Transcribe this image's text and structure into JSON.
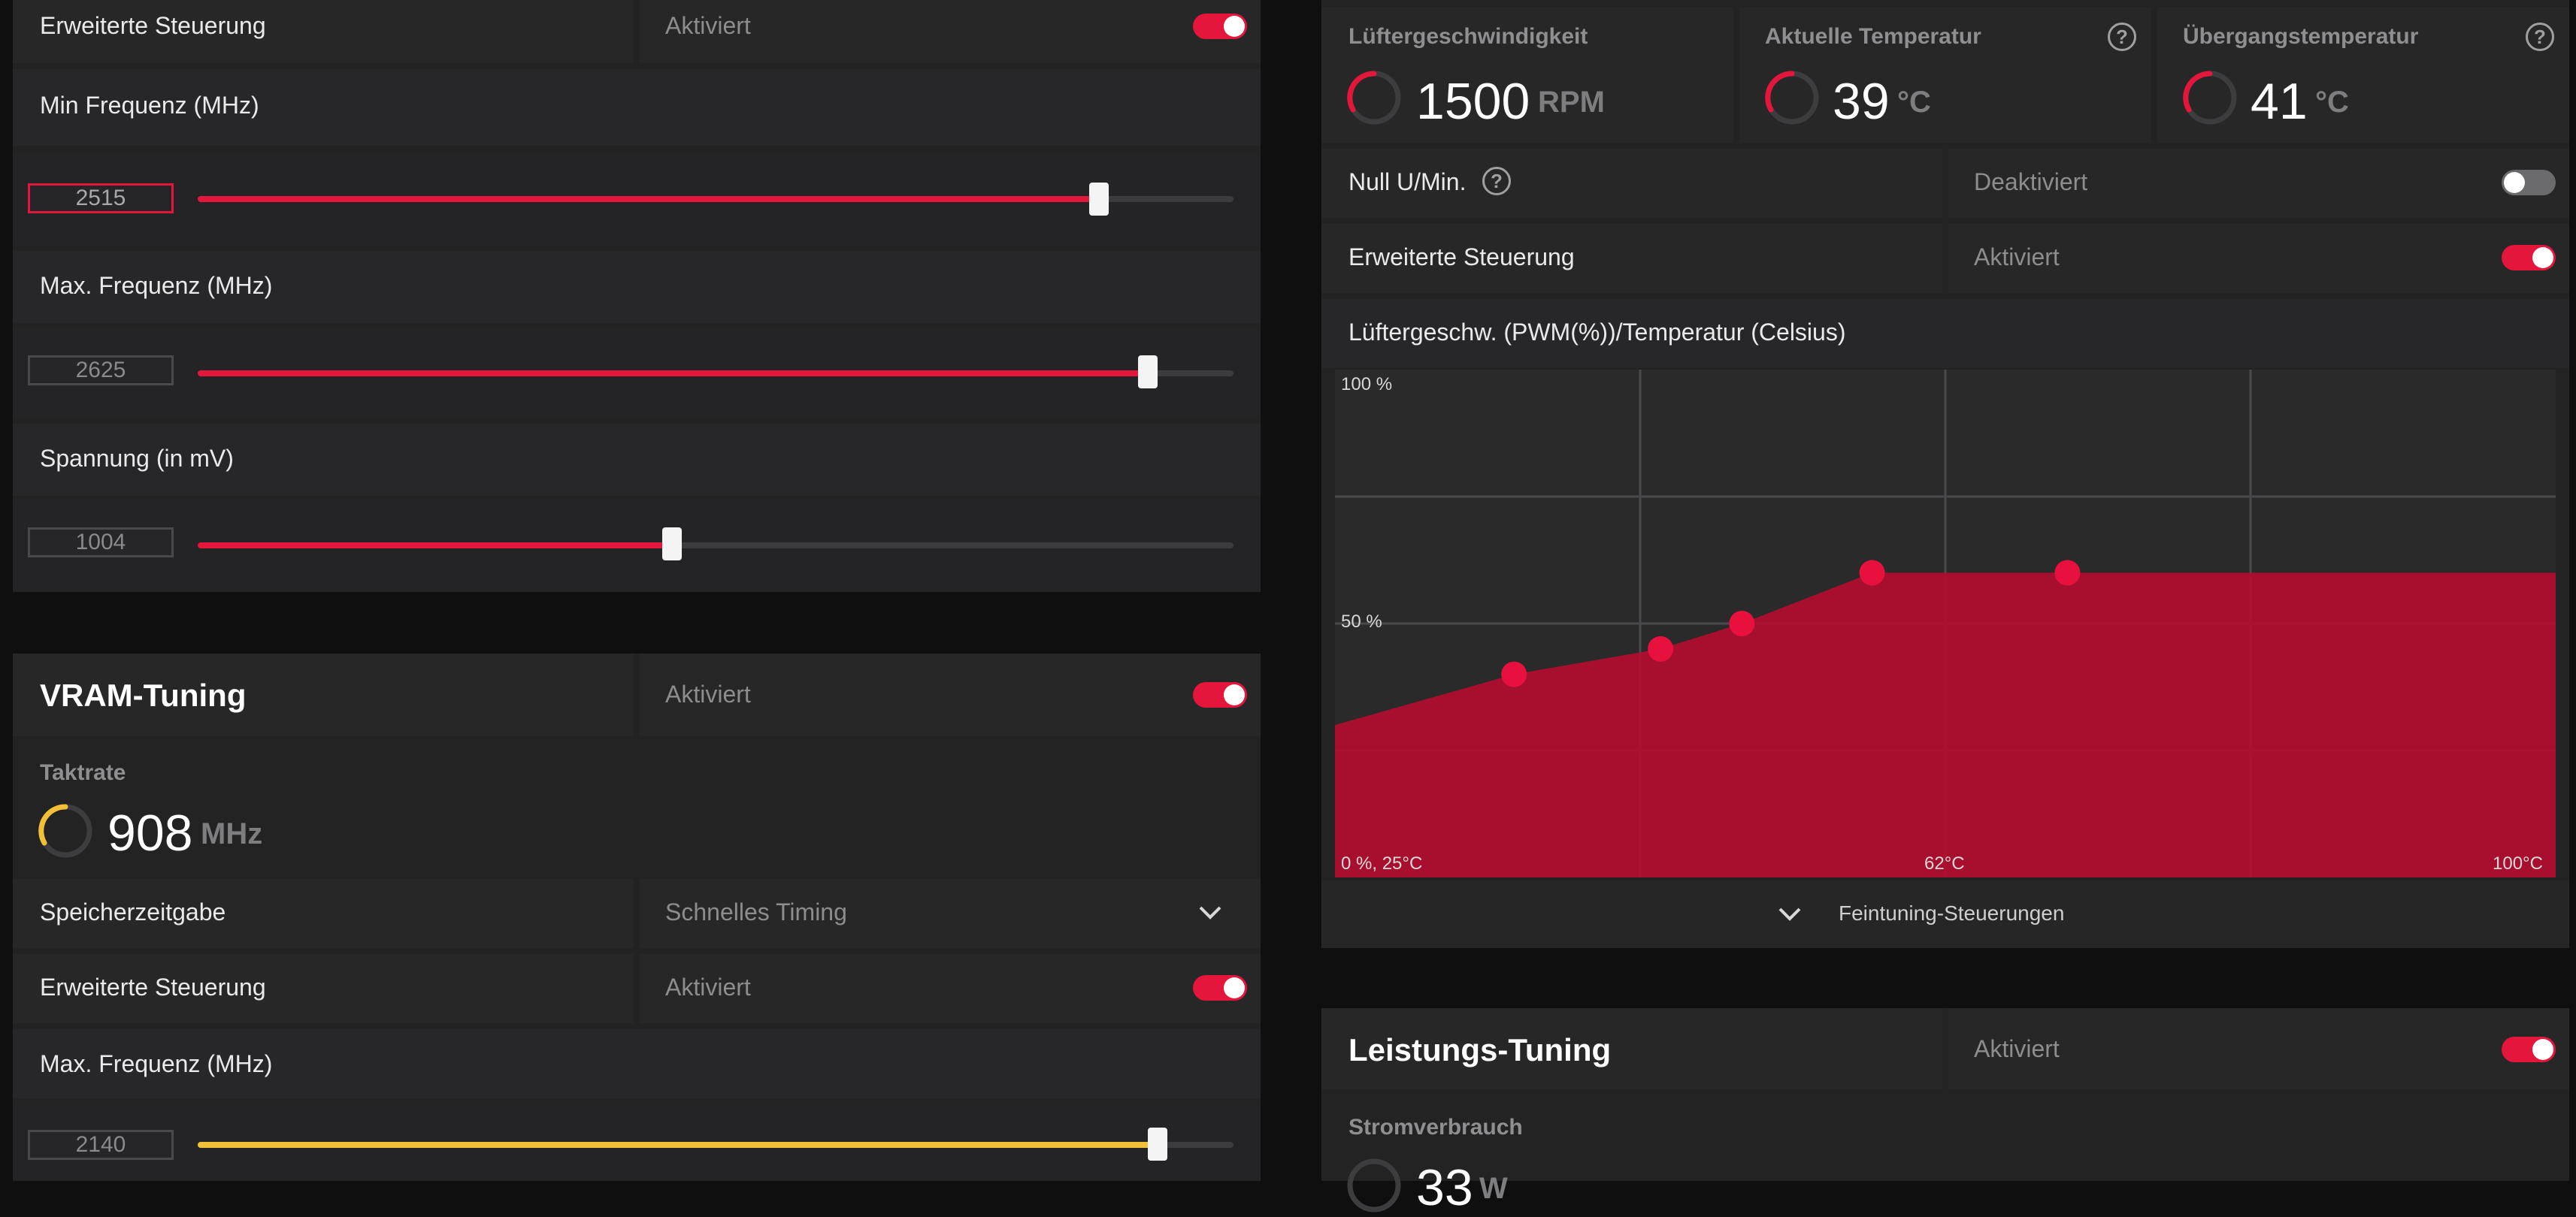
{
  "gpu_tuning": {
    "advanced_control": {
      "label": "Erweiterte Steuerung",
      "state": "Aktiviert",
      "on": true
    },
    "min_freq": {
      "label": "Min Frequenz (MHz)",
      "value": "2515",
      "fraction": 0.87
    },
    "max_freq": {
      "label": "Max. Frequenz (MHz)",
      "value": "2625",
      "fraction": 0.917
    },
    "voltage": {
      "label": "Spannung (in mV)",
      "value": "1004",
      "fraction": 0.458
    }
  },
  "vram_tuning": {
    "title": "VRAM-Tuning",
    "state": "Aktiviert",
    "on": true,
    "clock_label": "Taktrate",
    "clock_value": "908",
    "clock_unit": "MHz",
    "timing_label": "Speicherzeitgabe",
    "timing_value": "Schnelles Timing",
    "advanced_control": {
      "label": "Erweiterte Steuerung",
      "state": "Aktiviert",
      "on": true
    },
    "max_freq": {
      "label": "Max. Frequenz (MHz)",
      "value": "2140",
      "fraction": 0.927
    }
  },
  "fan_tuning": {
    "fan_speed": {
      "label": "Lüftergeschwindigkeit",
      "value": "1500",
      "unit": "RPM"
    },
    "current_temp": {
      "label": "Aktuelle Temperatur",
      "value": "39",
      "unit": "°C"
    },
    "junction_temp": {
      "label": "Übergangstemperatur",
      "value": "41",
      "unit": "°C"
    },
    "zero_rpm": {
      "label": "Null U/Min.",
      "state": "Deaktiviert",
      "on": false
    },
    "advanced_control": {
      "label": "Erweiterte Steuerung",
      "state": "Aktiviert",
      "on": true
    },
    "curve_title": "Lüftergeschw. (PWM(%))/Temperatur (Celsius)",
    "fine_tuning_label": "Feintuning-Steuerungen"
  },
  "chart_data": {
    "type": "area",
    "x": [
      25,
      36,
      45,
      50,
      58,
      70
    ],
    "values": [
      30,
      40,
      45,
      50,
      60,
      60
    ],
    "xlim": [
      25,
      100
    ],
    "ylim": [
      0,
      100
    ],
    "y_top_label": "100 %",
    "y_mid_label": "50 %",
    "x_min_label": "0 %, 25°C",
    "x_mid_label": "62°C",
    "x_max_label": "100°C",
    "grid": true,
    "fill_color": "#b30d30",
    "point_color": "#e8103c"
  },
  "power_tuning": {
    "title": "Leistungs-Tuning",
    "state": "Aktiviert",
    "on": true,
    "consumption_label": "Stromverbrauch",
    "consumption_value": "33",
    "consumption_unit": "W"
  },
  "colors": {
    "accent": "#e4163c",
    "vram_accent": "#f2c037",
    "panel": "#242425"
  }
}
